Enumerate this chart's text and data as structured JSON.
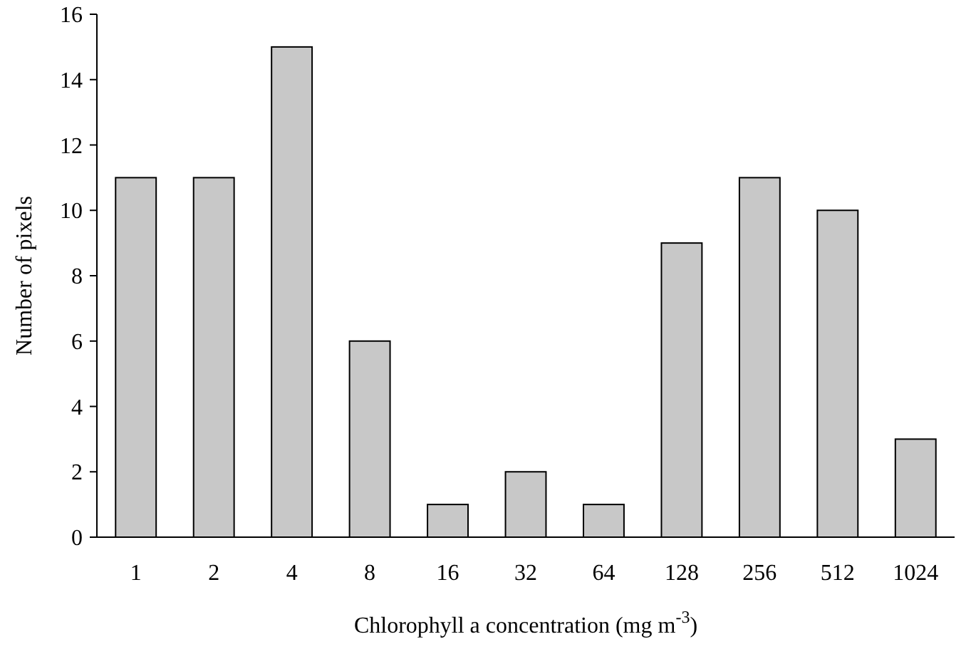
{
  "chart_data": {
    "type": "bar",
    "xlabel": "Chlorophyll a concentration (mg m$^{-3}$)",
    "ylabel": "Number of pixels",
    "categories": [
      "1",
      "2",
      "4",
      "8",
      "16",
      "32",
      "64",
      "128",
      "256",
      "512",
      "1024"
    ],
    "values": [
      11,
      11,
      15,
      6,
      1,
      2,
      1,
      9,
      11,
      10,
      3
    ],
    "color": "#c8c8c8",
    "ylim": [
      0,
      16
    ],
    "yticks": [
      0,
      2,
      4,
      6,
      8,
      10,
      12,
      14,
      16
    ],
    "grid": false
  }
}
